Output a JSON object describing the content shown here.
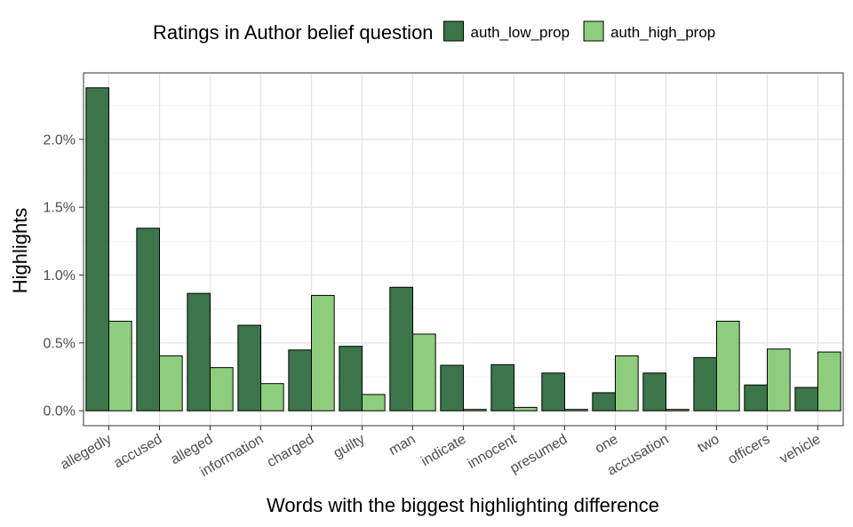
{
  "chart_data": {
    "type": "bar",
    "title": "",
    "xlabel": "Words with the biggest highlighting difference",
    "ylabel": "Highlights",
    "ylim": [
      -0.0011,
      0.0249
    ],
    "yticks": [
      0,
      0.005,
      0.01,
      0.015,
      0.02
    ],
    "ytick_labels": [
      "0.0%",
      "0.5%",
      "1.0%",
      "1.5%",
      "2.0%"
    ],
    "grid": true,
    "legend": {
      "title": "Ratings in Author belief question",
      "position": "top"
    },
    "categories": [
      "allegedly",
      "accused",
      "alleged",
      "information",
      "charged",
      "guilty",
      "man",
      "indicate",
      "innocent",
      "presumed",
      "one",
      "accusation",
      "two",
      "officers",
      "vehicle"
    ],
    "series": [
      {
        "name": "auth_low_prop",
        "color": "#3b7549",
        "values": [
          0.0238,
          0.01345,
          0.00865,
          0.0063,
          0.00448,
          0.00475,
          0.0091,
          0.00335,
          0.0034,
          0.00278,
          0.00133,
          0.00278,
          0.00392,
          0.0019,
          0.00172
        ]
      },
      {
        "name": "auth_high_prop",
        "color": "#8fcd7e",
        "values": [
          0.0066,
          0.00405,
          0.00318,
          0.002,
          0.0085,
          0.0012,
          0.00565,
          0.0001,
          0.00025,
          0.0001,
          0.00405,
          0.0001,
          0.0066,
          0.00455,
          0.00433
        ]
      }
    ]
  }
}
